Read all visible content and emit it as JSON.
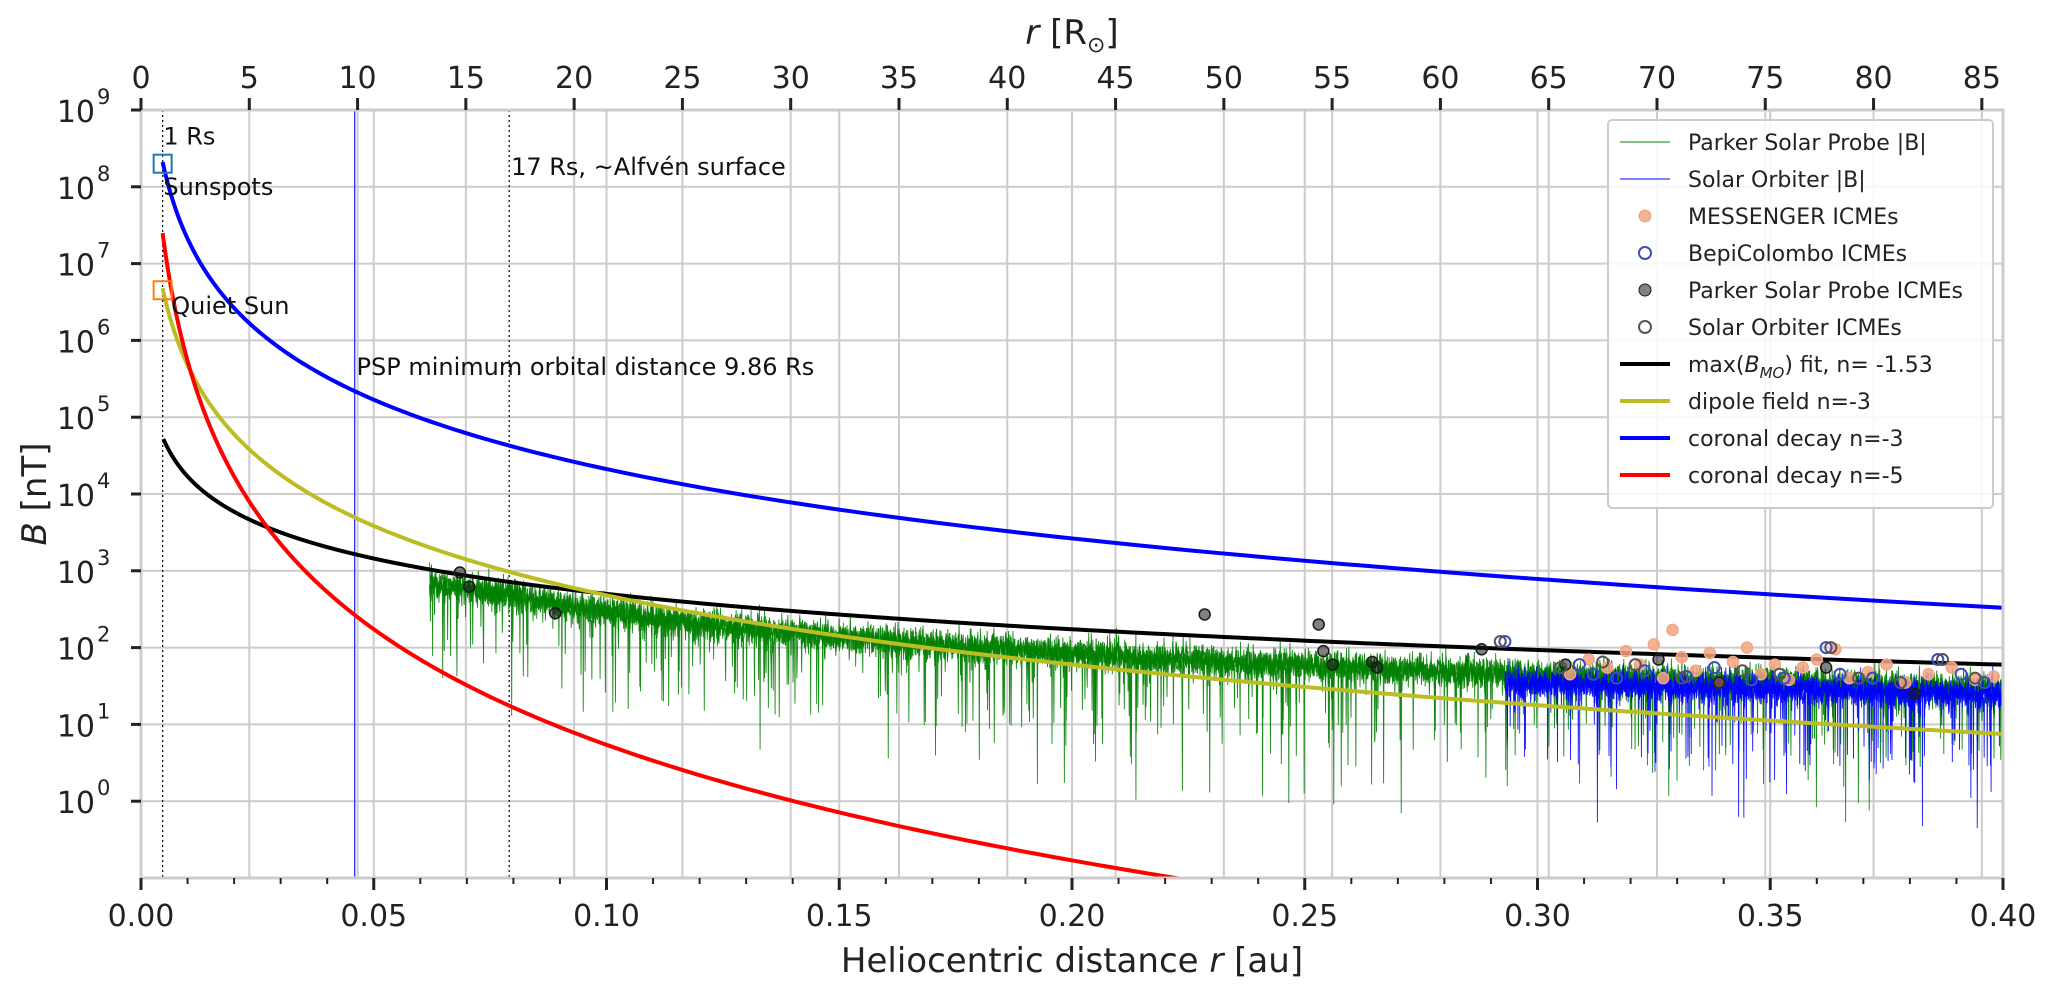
{
  "chart_data": {
    "type": "line",
    "title": "",
    "xlabel": "Heliocentric distance r [au]",
    "xlabel_parts": [
      "Heliocentric distance ",
      "r",
      " [au]"
    ],
    "ylabel": "B [nT]",
    "ylabel_parts": [
      "B",
      " [nT]"
    ],
    "top_xlabel": "r [R⊙]",
    "top_xlabel_parts": [
      "r",
      " [R",
      "⊙",
      "]"
    ],
    "xlim": [
      0.0,
      0.4
    ],
    "ylim_log10": [
      -1,
      9
    ],
    "yscale": "log",
    "grid": true,
    "legend_position": "top-right",
    "x_ticks": [
      0.0,
      0.05,
      0.1,
      0.15,
      0.2,
      0.25,
      0.3,
      0.35,
      0.4
    ],
    "x_tick_labels": [
      "0.00",
      "0.05",
      "0.10",
      "0.15",
      "0.20",
      "0.25",
      "0.30",
      "0.35",
      "0.40"
    ],
    "top_x_ticks_rs": [
      0,
      5,
      10,
      15,
      20,
      25,
      30,
      35,
      40,
      45,
      50,
      55,
      60,
      65,
      70,
      75,
      80,
      85
    ],
    "top_x_tick_labels": [
      "0",
      "5",
      "10",
      "15",
      "20",
      "25",
      "30",
      "35",
      "40",
      "45",
      "50",
      "55",
      "60",
      "65",
      "70",
      "75",
      "80",
      "85"
    ],
    "y_tick_exponents": [
      0,
      1,
      2,
      3,
      4,
      5,
      6,
      7,
      8,
      9
    ],
    "y_tick_base": "10",
    "au_per_rs": 0.0046524,
    "vertical_lines": [
      {
        "x": 0.00465,
        "style": "dotted",
        "color": "#000000"
      },
      {
        "x": 0.0791,
        "style": "dotted",
        "color": "#000000"
      },
      {
        "x": 0.0459,
        "style": "solid",
        "color": "#3333ff"
      }
    ],
    "annotations": [
      {
        "text": "1 Rs",
        "x": 0.0048,
        "y": 450000000.0
      },
      {
        "text": "Sunspots",
        "x": 0.0048,
        "y": 100000000.0
      },
      {
        "text": "Quiet Sun",
        "x": 0.0065,
        "y": 2800000.0
      },
      {
        "text": "17 Rs, ~Alfvén surface",
        "x": 0.0795,
        "y": 180000000.0
      },
      {
        "text": "PSP minimum orbital distance 9.86 Rs",
        "x": 0.0463,
        "y": 450000.0
      }
    ],
    "markers": [
      {
        "name": "Sunspots",
        "x": 0.00465,
        "y": 200000000.0,
        "color": "#1f77b4",
        "shape": "square-open"
      },
      {
        "name": "Quiet Sun",
        "x": 0.00465,
        "y": 4500000.0,
        "color": "#ff7f0e",
        "shape": "square-open"
      }
    ],
    "curves": [
      {
        "name": "max(B_MO) fit, n= -1.53",
        "legend_label_parts": [
          "max(",
          "B",
          "MO",
          ") fit, n= -1.53"
        ],
        "color": "#000000",
        "B0": 60,
        "n": -1.53,
        "x_start": 0.0048,
        "x_end": 0.4
      },
      {
        "name": "dipole field n=-3",
        "legend_label": "dipole field n=-3",
        "color": "#bcbd22",
        "B0": 7.5,
        "n": -3,
        "x_start": 0.00465,
        "x_end": 0.4
      },
      {
        "name": "coronal decay n=-3",
        "legend_label": "coronal decay n=-3",
        "color": "#0000ff",
        "B0": 330,
        "n": -3,
        "x_start": 0.00465,
        "x_end": 0.4
      },
      {
        "name": "coronal decay n=-5",
        "legend_label": "coronal decay n=-5",
        "color": "#ff0000",
        "B0": 0.0053,
        "n": -5,
        "x_start": 0.00465,
        "x_end": 0.4
      }
    ],
    "series": [
      {
        "name": "Parker Solar Probe |B|",
        "legend_label": "Parker Solar Probe |B|",
        "kind": "line",
        "color": "#008000",
        "x": [
          0.062,
          0.07,
          0.08,
          0.09,
          0.1,
          0.12,
          0.14,
          0.16,
          0.18,
          0.2,
          0.22,
          0.24,
          0.26,
          0.28,
          0.3,
          0.32,
          0.34,
          0.36,
          0.38,
          0.4
        ],
        "y": [
          700,
          600,
          470,
          360,
          290,
          205,
          155,
          125,
          100,
          85,
          72,
          62,
          55,
          49,
          44,
          40,
          37,
          34,
          31,
          29
        ]
      },
      {
        "name": "Solar Orbiter |B|",
        "legend_label": "Solar Orbiter |B|",
        "kind": "line",
        "color": "#0000ff",
        "x": [
          0.293,
          0.3,
          0.31,
          0.32,
          0.33,
          0.34,
          0.35,
          0.36,
          0.37,
          0.38,
          0.39,
          0.4
        ],
        "y": [
          35,
          34,
          33,
          32,
          31,
          30,
          29,
          28,
          27,
          26,
          25,
          24
        ]
      },
      {
        "name": "MESSENGER ICMEs",
        "legend_label": "MESSENGER ICMEs",
        "kind": "scatter",
        "color": "#f4a582",
        "fill": true,
        "x": [
          0.307,
          0.311,
          0.315,
          0.319,
          0.322,
          0.325,
          0.327,
          0.329,
          0.331,
          0.334,
          0.337,
          0.339,
          0.342,
          0.345,
          0.348,
          0.351,
          0.354,
          0.357,
          0.36,
          0.364,
          0.367,
          0.371,
          0.375,
          0.379,
          0.384,
          0.389,
          0.394,
          0.398
        ],
        "y": [
          45,
          70,
          55,
          90,
          60,
          110,
          40,
          170,
          75,
          50,
          85,
          35,
          65,
          100,
          45,
          60,
          38,
          55,
          70,
          95,
          40,
          48,
          60,
          35,
          45,
          55,
          38,
          42
        ]
      },
      {
        "name": "BepiColombo ICMEs",
        "legend_label": "BepiColombo ICMEs",
        "kind": "scatter",
        "color": "#3b4cc0",
        "fill": false,
        "x": [
          0.293,
          0.309,
          0.312,
          0.317,
          0.323,
          0.332,
          0.338,
          0.346,
          0.353,
          0.362,
          0.365,
          0.372,
          0.386,
          0.391,
          0.396
        ],
        "y": [
          120,
          60,
          45,
          40,
          50,
          42,
          55,
          38,
          40,
          100,
          45,
          40,
          70,
          45,
          35
        ]
      },
      {
        "name": "Parker Solar Probe ICMEs",
        "legend_label": "Parker Solar Probe ICMEs",
        "kind": "scatter",
        "color": "#1a1a1a",
        "fill": true,
        "alpha": 0.55,
        "x": [
          0.0685,
          0.0705,
          0.089,
          0.2285,
          0.253,
          0.254,
          0.256,
          0.2645,
          0.2655,
          0.288,
          0.306,
          0.326,
          0.339,
          0.362,
          0.381
        ],
        "y": [
          950,
          620,
          280,
          270,
          200,
          90,
          60,
          65,
          55,
          95,
          60,
          70,
          35,
          55,
          25
        ]
      },
      {
        "name": "Solar Orbiter ICMEs",
        "legend_label": "Solar Orbiter ICMEs",
        "kind": "scatter",
        "color": "#555555",
        "fill": false,
        "x": [
          0.292,
          0.305,
          0.314,
          0.321,
          0.331,
          0.344,
          0.352,
          0.363,
          0.369,
          0.378,
          0.387,
          0.394
        ],
        "y": [
          120,
          55,
          65,
          60,
          40,
          50,
          45,
          100,
          40,
          35,
          70,
          40
        ]
      }
    ]
  }
}
